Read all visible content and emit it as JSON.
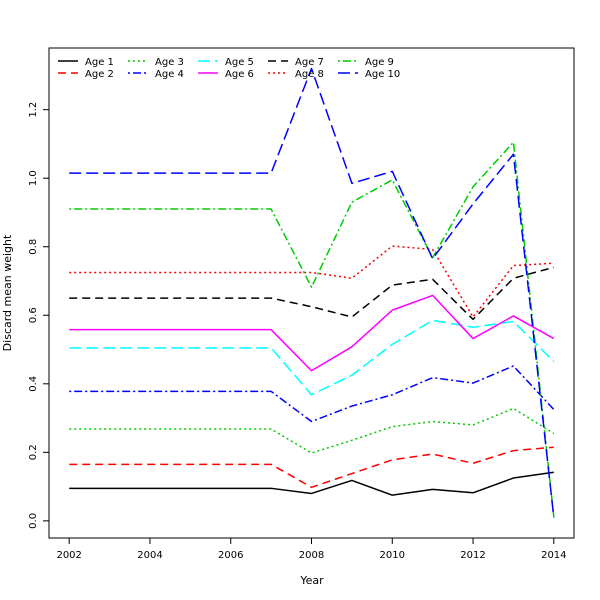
{
  "chart_data": {
    "type": "line",
    "xlabel": "Year",
    "ylabel": "Discard mean weight",
    "xlim": [
      2001.5,
      2014.5
    ],
    "ylim": [
      -0.05,
      1.38
    ],
    "xticks": [
      2002,
      2004,
      2006,
      2008,
      2010,
      2012,
      2014
    ],
    "yticks": [
      0.0,
      0.2,
      0.4,
      0.6,
      0.8,
      1.0,
      1.2
    ],
    "grid": false,
    "legend_position": "top-left",
    "x": [
      2002,
      2003,
      2004,
      2005,
      2006,
      2007,
      2008,
      2009,
      2010,
      2011,
      2012,
      2013,
      2014
    ],
    "series": [
      {
        "name": "Age 1",
        "color": "#000000",
        "dash": "solid",
        "values": [
          0.095,
          0.095,
          0.095,
          0.095,
          0.095,
          0.095,
          0.08,
          0.118,
          0.075,
          0.092,
          0.082,
          0.125,
          0.142
        ]
      },
      {
        "name": "Age 2",
        "color": "#ff0000",
        "dash": "dashed",
        "values": [
          0.165,
          0.165,
          0.165,
          0.165,
          0.165,
          0.165,
          0.098,
          0.138,
          0.178,
          0.195,
          0.168,
          0.205,
          0.215
        ]
      },
      {
        "name": "Age 3",
        "color": "#00cc00",
        "dash": "dotted",
        "values": [
          0.268,
          0.268,
          0.268,
          0.268,
          0.268,
          0.268,
          0.198,
          0.235,
          0.275,
          0.29,
          0.28,
          0.328,
          0.255
        ]
      },
      {
        "name": "Age 4",
        "color": "#0000ff",
        "dash": "dotdash",
        "values": [
          0.378,
          0.378,
          0.378,
          0.378,
          0.378,
          0.378,
          0.29,
          0.335,
          0.368,
          0.418,
          0.402,
          0.452,
          0.325
        ]
      },
      {
        "name": "Age 5",
        "color": "#00ffff",
        "dash": "longdash",
        "values": [
          0.505,
          0.505,
          0.505,
          0.505,
          0.505,
          0.505,
          0.368,
          0.425,
          0.515,
          0.585,
          0.565,
          0.582,
          0.465
        ]
      },
      {
        "name": "Age 6",
        "color": "#ff00ff",
        "dash": "solid",
        "values": [
          0.558,
          0.558,
          0.558,
          0.558,
          0.558,
          0.558,
          0.438,
          0.508,
          0.615,
          0.658,
          0.532,
          0.598,
          0.532
        ]
      },
      {
        "name": "Age 7",
        "color": "#000000",
        "dash": "dashed",
        "values": [
          0.65,
          0.65,
          0.65,
          0.65,
          0.65,
          0.65,
          0.625,
          0.595,
          0.688,
          0.705,
          0.588,
          0.708,
          0.74
        ]
      },
      {
        "name": "Age 8",
        "color": "#ff0000",
        "dash": "dotted",
        "values": [
          0.725,
          0.725,
          0.725,
          0.725,
          0.725,
          0.725,
          0.725,
          0.708,
          0.802,
          0.792,
          0.595,
          0.745,
          0.752
        ]
      },
      {
        "name": "Age 9",
        "color": "#00cc00",
        "dash": "dotdash",
        "values": [
          0.91,
          0.91,
          0.91,
          0.91,
          0.91,
          0.91,
          0.682,
          0.93,
          0.995,
          0.768,
          0.975,
          1.105,
          0.012
        ]
      },
      {
        "name": "Age 10",
        "color": "#0000ff",
        "dash": "longdash",
        "values": [
          1.015,
          1.015,
          1.015,
          1.015,
          1.015,
          1.015,
          1.32,
          0.985,
          1.02,
          0.765,
          0.925,
          1.07,
          0.01
        ]
      }
    ]
  }
}
